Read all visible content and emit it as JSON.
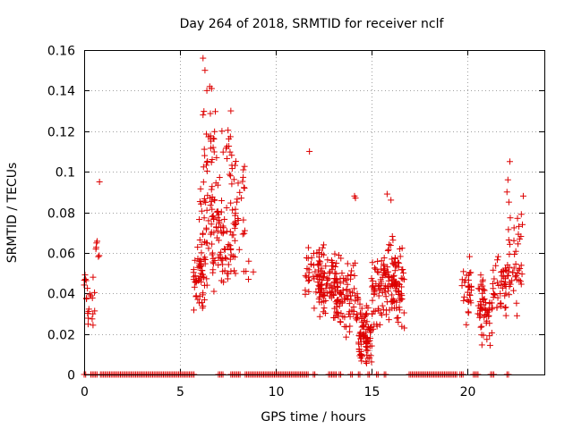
{
  "chart_data": {
    "type": "scatter",
    "title": "Day 264 of 2018, SRMTID for receiver nclf",
    "xlabel": "GPS time / hours",
    "ylabel": "SRMTID / TECUs",
    "xlim": [
      0,
      24
    ],
    "ylim": [
      0,
      0.16
    ],
    "grid": true,
    "legend": "none",
    "marker": "+",
    "marker_color": "#dd0000",
    "x_ticks": [
      "0",
      "5",
      "10",
      "15",
      "20"
    ],
    "y_ticks": [
      "0",
      "0.02",
      "0.04",
      "0.06",
      "0.08",
      "0.1",
      "0.12",
      "0.14",
      "0.16"
    ],
    "series": [
      {
        "name": "SRMTID",
        "clusters": [
          {
            "x": [
              0.0,
              0.55
            ],
            "y": [
              0.02,
              0.06
            ],
            "n": 22
          },
          {
            "x": [
              0.6,
              0.9
            ],
            "y": [
              0.05,
              0.077
            ],
            "n": 6
          },
          {
            "x": [
              5.7,
              6.3
            ],
            "y": [
              0.028,
              0.065
            ],
            "n": 45
          },
          {
            "x": [
              6.0,
              7.0
            ],
            "y": [
              0.04,
              0.1
            ],
            "n": 70
          },
          {
            "x": [
              6.2,
              7.2
            ],
            "y": [
              0.085,
              0.135
            ],
            "n": 28
          },
          {
            "x": [
              7.0,
              7.9
            ],
            "y": [
              0.04,
              0.09
            ],
            "n": 55
          },
          {
            "x": [
              7.2,
              7.8
            ],
            "y": [
              0.09,
              0.13
            ],
            "n": 14
          },
          {
            "x": [
              7.7,
              8.4
            ],
            "y": [
              0.06,
              0.11
            ],
            "n": 28
          },
          {
            "x": [
              8.2,
              8.9
            ],
            "y": [
              0.045,
              0.058
            ],
            "n": 5
          },
          {
            "x": [
              11.5,
              12.4
            ],
            "y": [
              0.03,
              0.07
            ],
            "n": 45
          },
          {
            "x": [
              12.2,
              13.2
            ],
            "y": [
              0.025,
              0.065
            ],
            "n": 75
          },
          {
            "x": [
              13.0,
              14.3
            ],
            "y": [
              0.015,
              0.06
            ],
            "n": 90
          },
          {
            "x": [
              14.3,
              15.0
            ],
            "y": [
              0.005,
              0.035
            ],
            "n": 80
          },
          {
            "x": [
              14.9,
              15.8
            ],
            "y": [
              0.02,
              0.06
            ],
            "n": 60
          },
          {
            "x": [
              15.7,
              16.7
            ],
            "y": [
              0.02,
              0.07
            ],
            "n": 95
          },
          {
            "x": [
              19.7,
              20.2
            ],
            "y": [
              0.02,
              0.062
            ],
            "n": 30
          },
          {
            "x": [
              20.5,
              21.3
            ],
            "y": [
              0.01,
              0.055
            ],
            "n": 55
          },
          {
            "x": [
              21.3,
              22.0
            ],
            "y": [
              0.025,
              0.06
            ],
            "n": 40
          },
          {
            "x": [
              22.0,
              22.9
            ],
            "y": [
              0.025,
              0.08
            ],
            "n": 45
          }
        ],
        "highlights": [
          {
            "x": 6.2,
            "y": 0.156
          },
          {
            "x": 6.3,
            "y": 0.15
          },
          {
            "x": 6.55,
            "y": 0.142
          },
          {
            "x": 6.65,
            "y": 0.141
          },
          {
            "x": 6.4,
            "y": 0.14
          },
          {
            "x": 6.2,
            "y": 0.128
          },
          {
            "x": 7.65,
            "y": 0.13
          },
          {
            "x": 0.8,
            "y": 0.095
          },
          {
            "x": 11.75,
            "y": 0.11
          },
          {
            "x": 14.1,
            "y": 0.088
          },
          {
            "x": 14.15,
            "y": 0.087
          },
          {
            "x": 15.8,
            "y": 0.089
          },
          {
            "x": 16.0,
            "y": 0.086
          },
          {
            "x": 22.2,
            "y": 0.105
          },
          {
            "x": 22.1,
            "y": 0.096
          },
          {
            "x": 22.05,
            "y": 0.09
          },
          {
            "x": 22.9,
            "y": 0.088
          },
          {
            "x": 22.15,
            "y": 0.085
          },
          {
            "x": 22.8,
            "y": 0.079
          },
          {
            "x": 22.6,
            "y": 0.077
          },
          {
            "x": 14.8,
            "y": 0.008
          },
          {
            "x": 14.5,
            "y": 0.009
          }
        ],
        "zero_segments": [
          [
            0.0,
            0.12
          ],
          [
            0.35,
            0.7
          ],
          [
            0.85,
            5.75
          ],
          [
            7.0,
            7.25
          ],
          [
            7.65,
            8.2
          ],
          [
            8.4,
            11.7
          ],
          [
            11.95,
            12.05
          ],
          [
            12.75,
            13.15
          ],
          [
            13.3,
            13.45
          ],
          [
            13.9,
            14.05
          ],
          [
            14.3,
            14.45
          ],
          [
            14.8,
            14.95
          ],
          [
            15.25,
            15.4
          ],
          [
            15.65,
            15.8
          ],
          [
            16.95,
            19.45
          ],
          [
            19.6,
            19.8
          ],
          [
            20.3,
            20.6
          ],
          [
            21.2,
            21.4
          ],
          [
            22.05,
            22.15
          ]
        ]
      }
    ]
  }
}
